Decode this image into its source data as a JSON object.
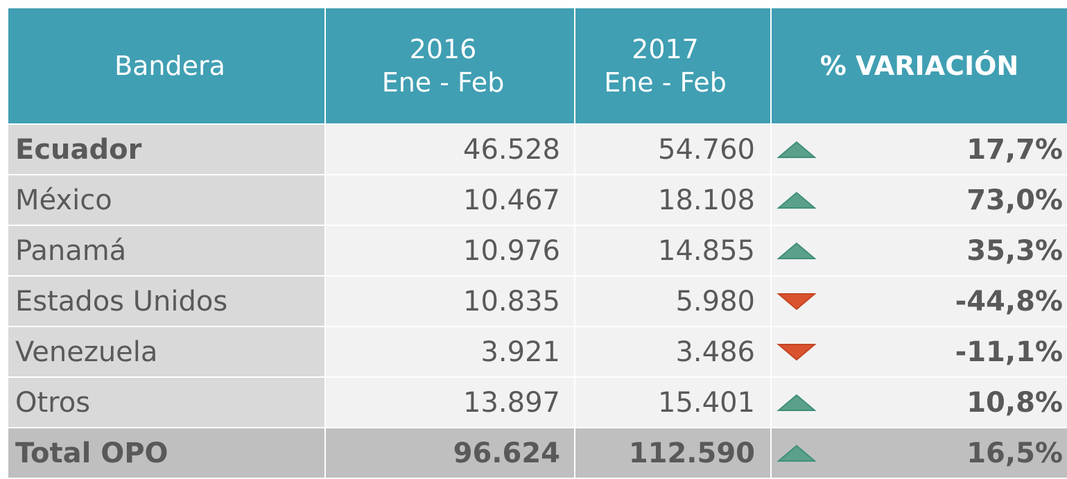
{
  "table": {
    "header": [
      [
        "Bandera"
      ],
      [
        "2016",
        "Ene - Feb"
      ],
      [
        "2017",
        "Ene - Feb"
      ],
      [
        "% VARIACIÓN"
      ]
    ],
    "rows": [
      {
        "name": "Ecuador",
        "y2016": "46.528",
        "y2017": "54.760",
        "trend": "up",
        "variation": "17,7%"
      },
      {
        "name": "México",
        "y2016": "10.467",
        "y2017": "18.108",
        "trend": "up",
        "variation": "73,0%"
      },
      {
        "name": "Panamá",
        "y2016": "10.976",
        "y2017": "14.855",
        "trend": "up",
        "variation": "35,3%"
      },
      {
        "name": "Estados Unidos",
        "y2016": "10.835",
        "y2017": "5.980",
        "trend": "down",
        "variation": "-44,8%"
      },
      {
        "name": "Venezuela",
        "y2016": "3.921",
        "y2017": "3.486",
        "trend": "down",
        "variation": "-11,1%"
      },
      {
        "name": "Otros",
        "y2016": "13.897",
        "y2017": "15.401",
        "trend": "up",
        "variation": "10,8%"
      },
      {
        "name": "Total OPO",
        "y2016": "96.624",
        "y2017": "112.590",
        "trend": "up",
        "variation": "16,5%"
      }
    ]
  }
}
